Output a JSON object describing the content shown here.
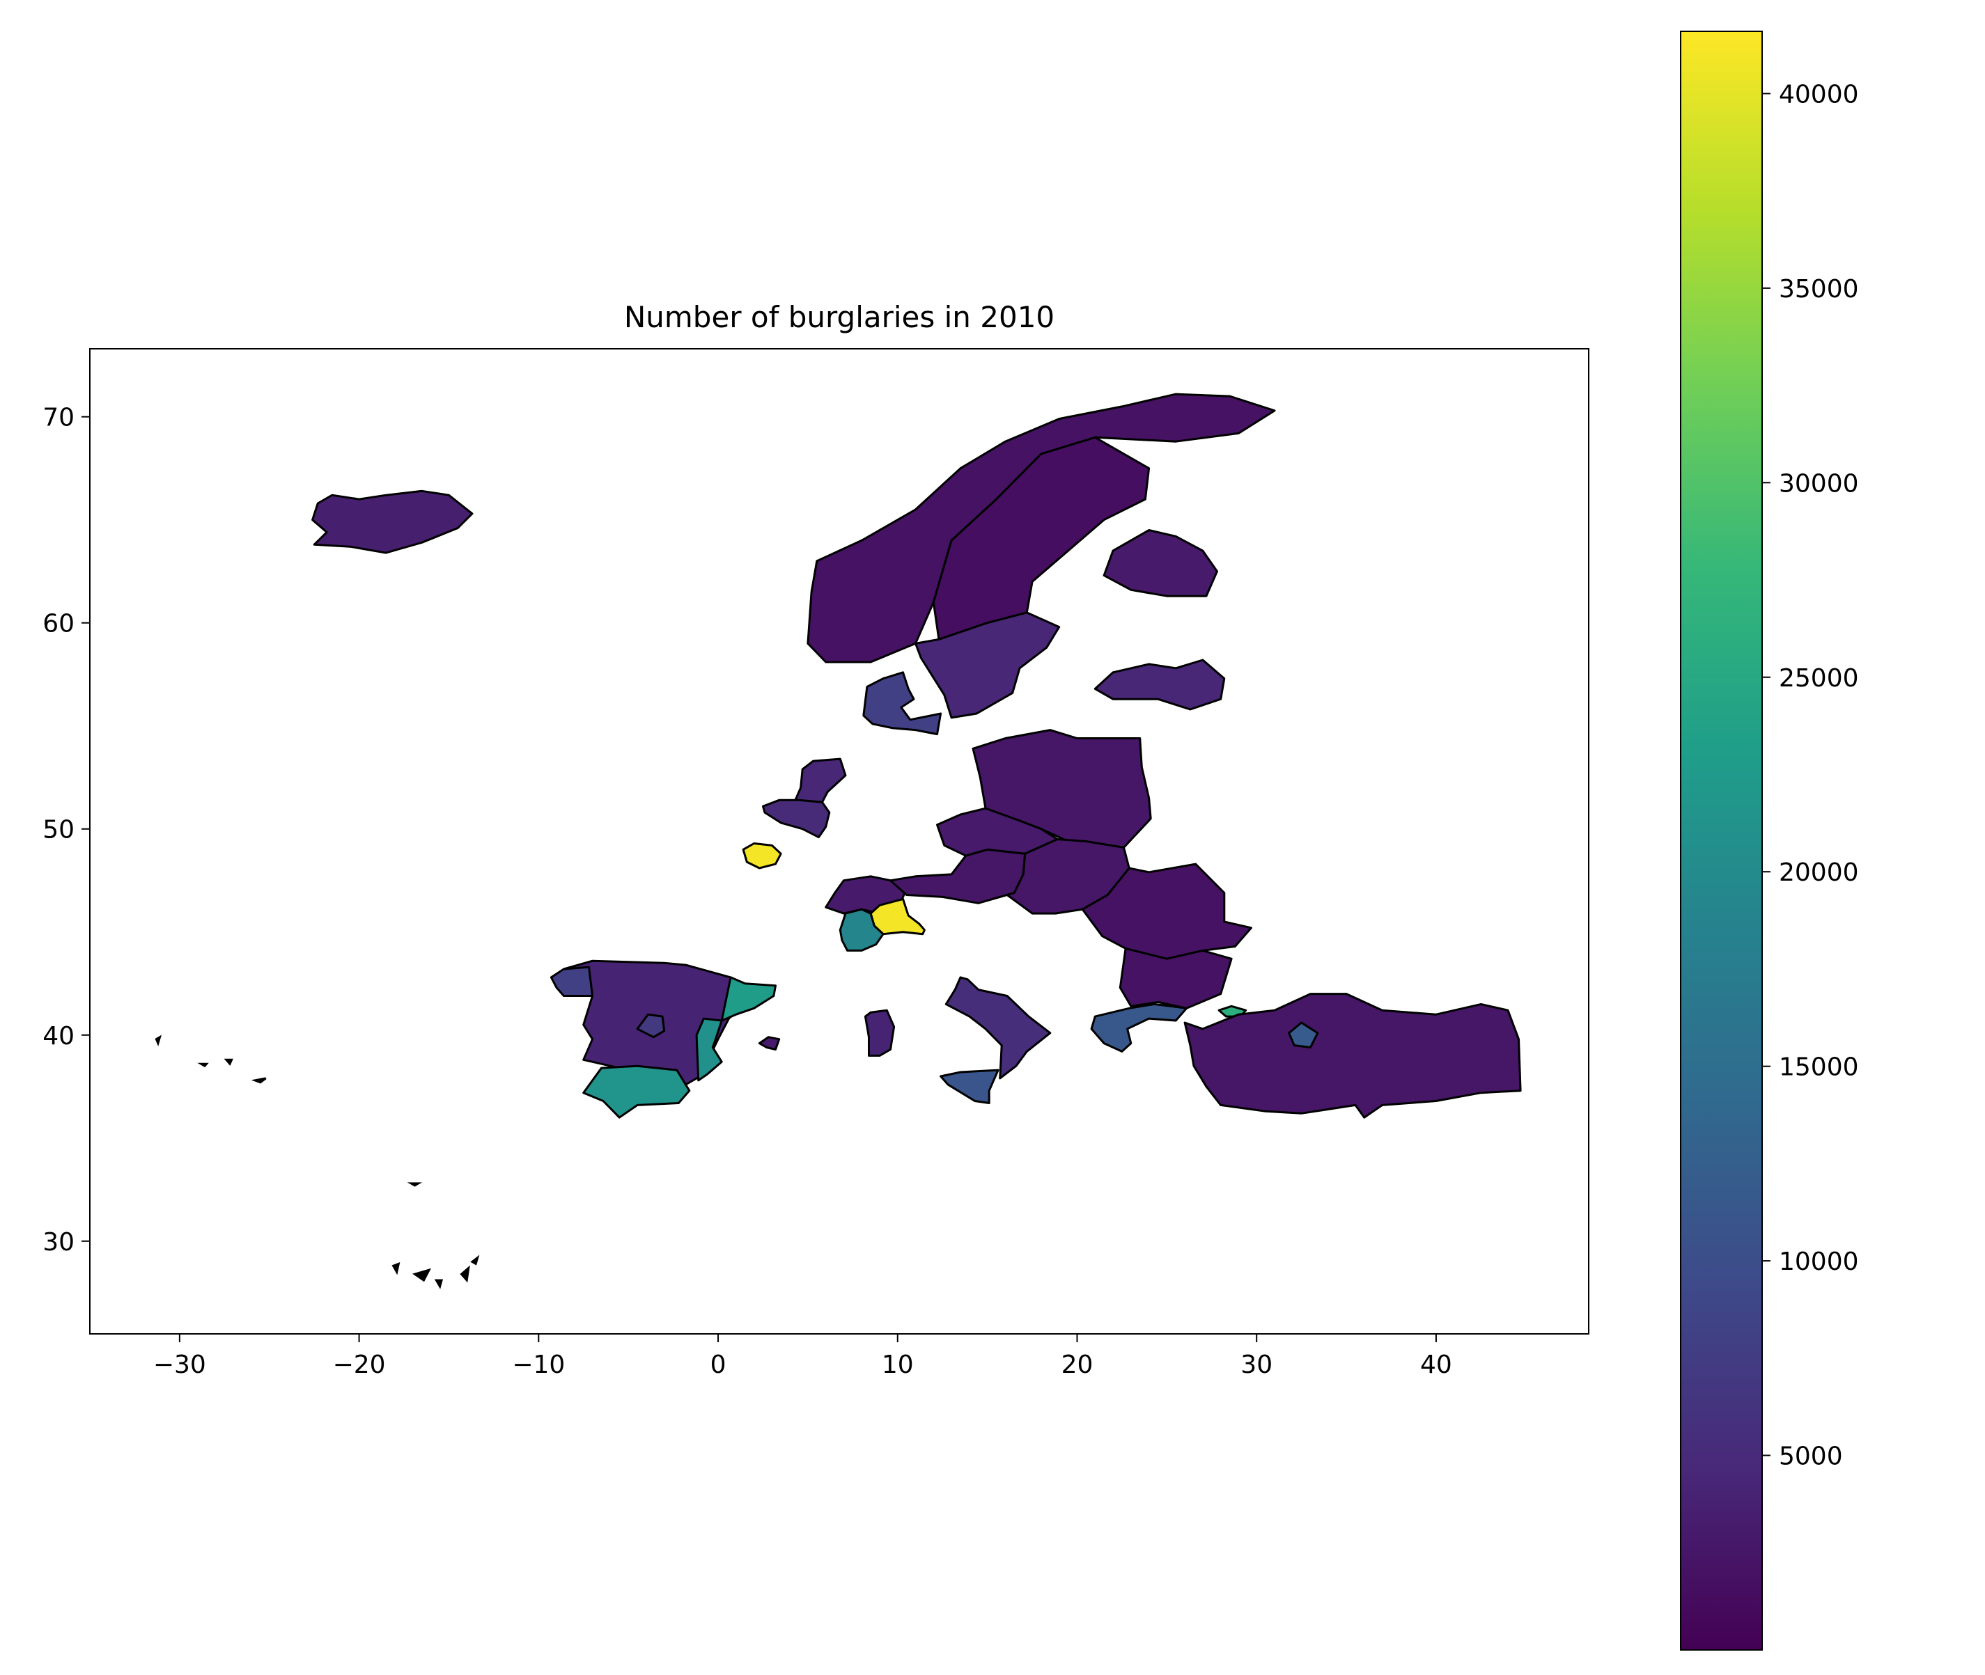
{
  "title": "Number of burglaries in 2010",
  "chart_data": {
    "type": "choropleth",
    "title": "Number of burglaries in 2010",
    "xlim": [
      -35,
      48.5
    ],
    "ylim": [
      25.5,
      73.3
    ],
    "x_ticks": [
      -30,
      -20,
      -10,
      0,
      10,
      20,
      30,
      40
    ],
    "y_ticks": [
      30,
      40,
      50,
      60,
      70
    ],
    "x_tick_labels": [
      "−30",
      "−20",
      "−10",
      "0",
      "10",
      "20",
      "30",
      "40"
    ],
    "y_tick_labels": [
      "30",
      "40",
      "50",
      "60",
      "70"
    ],
    "colorbar": {
      "colormap": "viridis",
      "min": 0,
      "max": 41600,
      "ticks": [
        5000,
        10000,
        15000,
        20000,
        25000,
        30000,
        35000,
        40000
      ],
      "tick_labels": [
        "5000",
        "10000",
        "15000",
        "20000",
        "25000",
        "30000",
        "35000",
        "40000"
      ]
    },
    "colormap_stops": [
      "#440154",
      "#482878",
      "#3e4989",
      "#31688e",
      "#26828e",
      "#1f9e89",
      "#35b779",
      "#6ece58",
      "#b5de2b",
      "#fde725"
    ],
    "regions": [
      {
        "name": "Iceland",
        "value": 3500
      },
      {
        "name": "Norway",
        "value": 2000
      },
      {
        "name": "Sweden",
        "value": 1500
      },
      {
        "name": "South Sweden",
        "value": 4500
      },
      {
        "name": "Finland",
        "value": 3000
      },
      {
        "name": "Estonia-Latvia",
        "value": 4500
      },
      {
        "name": "Denmark",
        "value": 8000
      },
      {
        "name": "Netherlands",
        "value": 4500
      },
      {
        "name": "Belgium",
        "value": 5000
      },
      {
        "name": "Paris",
        "value": 41000
      },
      {
        "name": "Switzerland",
        "value": 3000
      },
      {
        "name": "Lombardy",
        "value": 41000
      },
      {
        "name": "Piedmont",
        "value": 19000
      },
      {
        "name": "Austria",
        "value": 2500
      },
      {
        "name": "Poland",
        "value": 2500
      },
      {
        "name": "Czechia",
        "value": 3000
      },
      {
        "name": "Hungary",
        "value": 2500
      },
      {
        "name": "Romania",
        "value": 2000
      },
      {
        "name": "Bulgaria",
        "value": 2000
      },
      {
        "name": "Northern Greece",
        "value": 11500
      },
      {
        "name": "Istanbul",
        "value": 26000
      },
      {
        "name": "Turkey",
        "value": 2500
      },
      {
        "name": "Ankara",
        "value": 12000
      },
      {
        "name": "Northern Spain",
        "value": 4000
      },
      {
        "name": "Galicia",
        "value": 8000
      },
      {
        "name": "Catalonia",
        "value": 23000
      },
      {
        "name": "Valencia",
        "value": 21000
      },
      {
        "name": "Andalusia",
        "value": 21500
      },
      {
        "name": "Madrid",
        "value": 7000
      },
      {
        "name": "Sardinia",
        "value": 4000
      },
      {
        "name": "Southern Italy",
        "value": 5500
      },
      {
        "name": "Sicily",
        "value": 11000
      },
      {
        "name": "Balearic Islands",
        "value": 3000
      }
    ]
  }
}
